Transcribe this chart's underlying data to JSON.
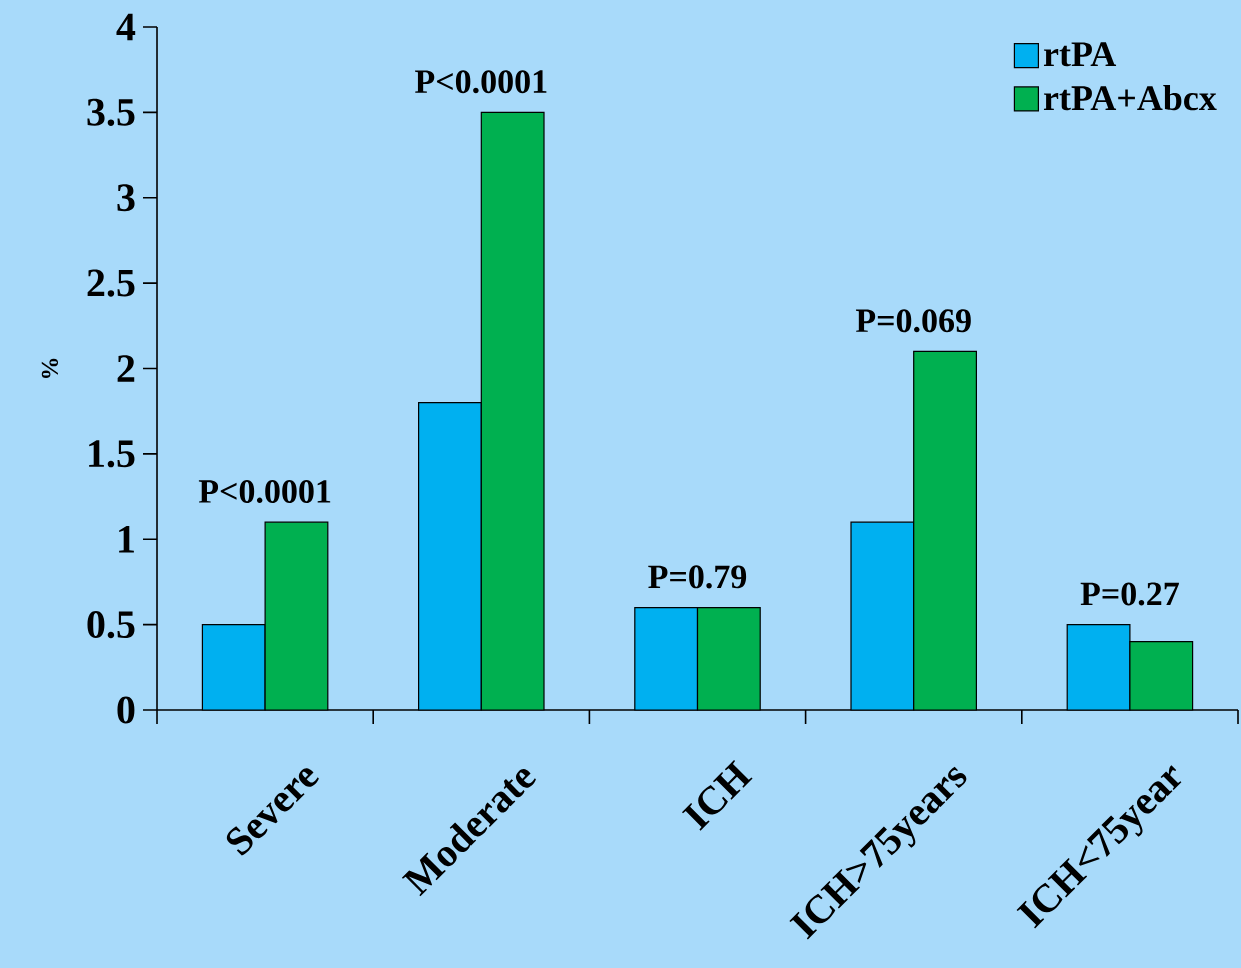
{
  "chart_data": {
    "type": "bar",
    "ylabel": "%",
    "categories": [
      "Severe",
      "Moderate",
      "ICH",
      "ICH>75years",
      "ICH<75year"
    ],
    "series": [
      {
        "name": "rtPA",
        "color": "#00b0f0",
        "values": [
          0.5,
          1.8,
          0.6,
          1.1,
          0.5
        ]
      },
      {
        "name": "rtPA+Abcx",
        "color": "#00b050",
        "values": [
          1.1,
          3.5,
          0.6,
          2.1,
          0.4
        ]
      }
    ],
    "ylim": [
      0,
      4
    ],
    "yticks": [
      0,
      0.5,
      1,
      1.5,
      2,
      2.5,
      3,
      3.5,
      4
    ],
    "annotations": [
      "P<0.0001",
      "P<0.0001",
      "P=0.79",
      "P=0.069",
      "P=0.27"
    ],
    "legend": "top right",
    "grid": false
  }
}
